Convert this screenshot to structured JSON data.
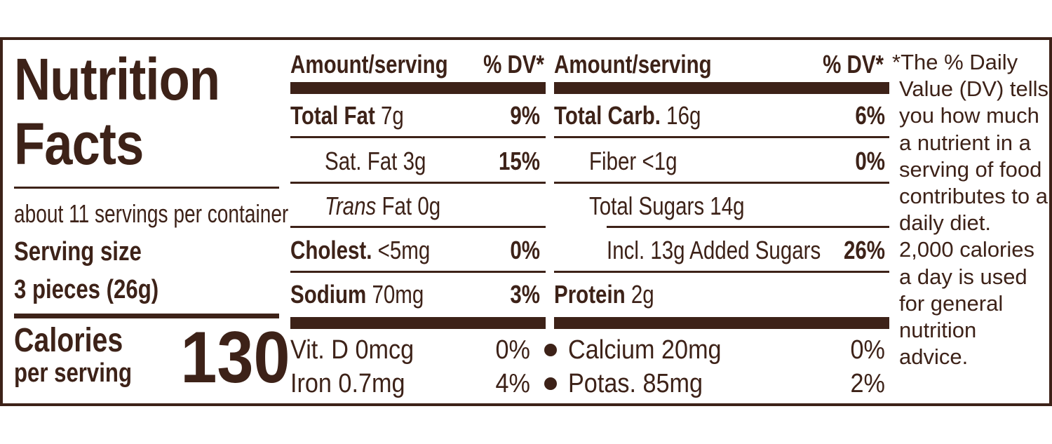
{
  "left": {
    "title_line1": "Nutrition",
    "title_line2": "Facts",
    "servings_per_container": "about 11 servings per container",
    "serving_size_label": "Serving size",
    "serving_size_value": "3 pieces (26g)",
    "calories_label_line1": "Calories",
    "calories_label_line2": "per serving",
    "calories_value": "130"
  },
  "col1": {
    "header_amount": "Amount/serving",
    "header_dv": "% DV*",
    "rows": [
      {
        "name": "Total Fat",
        "amount": " 7g",
        "dv": "9%"
      },
      {
        "name": "Sat. Fat 3g",
        "dv": "15%"
      },
      {
        "name_italic": "Trans",
        "name_rest": " Fat 0g"
      },
      {
        "name": "Cholest.",
        "amount": " <5mg",
        "dv": "0%"
      },
      {
        "name": "Sodium",
        "amount": " 70mg",
        "dv": "3%"
      }
    ]
  },
  "col2": {
    "header_amount": "Amount/serving",
    "header_dv": "% DV*",
    "rows": [
      {
        "name": "Total Carb.",
        "amount": " 16g",
        "dv": "6%"
      },
      {
        "name": "Fiber <1g",
        "dv": "0%"
      },
      {
        "name": "Total Sugars 14g"
      },
      {
        "name": "Incl. 13g Added Sugars",
        "dv": "26%"
      },
      {
        "name": "Protein",
        "amount": " 2g"
      }
    ]
  },
  "vitamins": [
    {
      "name": "Vit. D 0mcg",
      "dv": "0%"
    },
    {
      "name": "Calcium 20mg",
      "dv": "0%"
    },
    {
      "name": "Iron 0.7mg",
      "dv": "4%"
    },
    {
      "name": "Potas. 85mg",
      "dv": "2%"
    }
  ],
  "footnote": {
    "lines": [
      "*The % Daily",
      "Value (DV) tells",
      "you how much",
      "a nutrient in a",
      "serving of food",
      "contributes to a",
      "daily diet.",
      "2,000 calories",
      "a day is used",
      "for general",
      "nutrition",
      "advice."
    ]
  },
  "colors": {
    "brown": "#3d2218",
    "background": "#ffffff"
  }
}
